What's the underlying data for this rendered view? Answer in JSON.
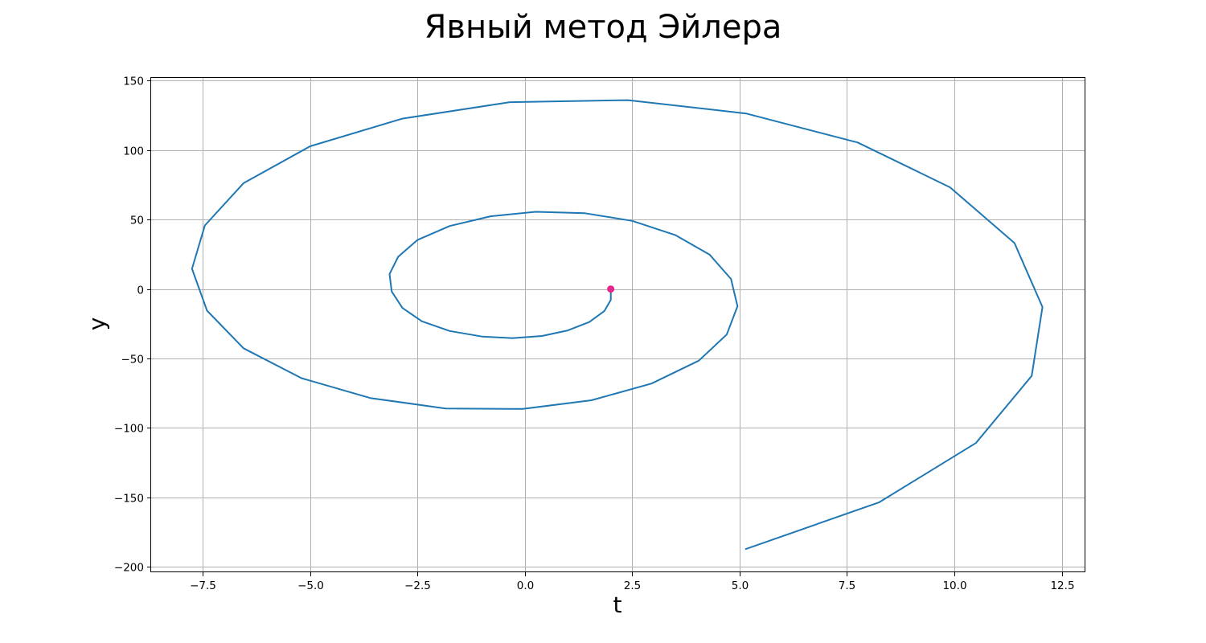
{
  "chart_data": {
    "type": "line",
    "title": "Явный метод Эйлера",
    "xlabel": "t",
    "ylabel": "y",
    "xlim": [
      -8.7,
      13.05
    ],
    "ylim": [
      -204,
      152
    ],
    "xticks": [
      -7.5,
      -5.0,
      -2.5,
      0.0,
      2.5,
      5.0,
      7.5,
      10.0,
      12.5
    ],
    "xtick_labels": [
      "−7.5",
      "−5.0",
      "−2.5",
      "0.0",
      "2.5",
      "5.0",
      "7.5",
      "10.0",
      "12.5"
    ],
    "yticks": [
      -200,
      -150,
      -100,
      -50,
      0,
      50,
      100,
      150
    ],
    "ytick_labels": [
      "−200",
      "−150",
      "−100",
      "−50",
      "0",
      "50",
      "100",
      "150"
    ],
    "grid": true,
    "series": [
      {
        "color": "#1f77b4",
        "points": [
          [
            2.0,
            0.0
          ],
          [
            2.0,
            -7.8
          ],
          [
            1.85,
            -15.9
          ],
          [
            1.5,
            -23.8
          ],
          [
            1.0,
            -29.8
          ],
          [
            0.4,
            -33.8
          ],
          [
            -0.3,
            -35.4
          ],
          [
            -1.0,
            -34.2
          ],
          [
            -1.75,
            -30.2
          ],
          [
            -2.4,
            -23.2
          ],
          [
            -2.85,
            -13.6
          ],
          [
            -3.1,
            -1.8
          ],
          [
            -3.15,
            10.8
          ],
          [
            -2.95,
            23.2
          ],
          [
            -2.5,
            35.3
          ],
          [
            -1.75,
            45.4
          ],
          [
            -0.8,
            52.4
          ],
          [
            0.25,
            55.6
          ],
          [
            1.4,
            54.6
          ],
          [
            2.5,
            49.1
          ],
          [
            3.5,
            38.9
          ],
          [
            4.3,
            24.8
          ],
          [
            4.8,
            7.3
          ],
          [
            4.95,
            -12.4
          ],
          [
            4.7,
            -32.8
          ],
          [
            4.05,
            -51.6
          ],
          [
            2.95,
            -68.1
          ],
          [
            1.55,
            -80.1
          ],
          [
            -0.05,
            -86.4
          ],
          [
            -1.85,
            -86.0
          ],
          [
            -3.6,
            -78.5
          ],
          [
            -5.2,
            -64.2
          ],
          [
            -6.55,
            -42.7
          ],
          [
            -7.4,
            -15.6
          ],
          [
            -7.75,
            14.6
          ],
          [
            -7.45,
            45.8
          ],
          [
            -6.55,
            76.2
          ],
          [
            -5.0,
            102.8
          ],
          [
            -2.85,
            122.7
          ],
          [
            -0.35,
            134.6
          ],
          [
            2.4,
            136.0
          ],
          [
            5.15,
            126.4
          ],
          [
            7.75,
            105.5
          ],
          [
            9.9,
            73.2
          ],
          [
            11.4,
            33.1
          ],
          [
            12.05,
            -13.0
          ],
          [
            11.8,
            -62.6
          ],
          [
            10.5,
            -110.9
          ],
          [
            8.25,
            -153.6
          ],
          [
            5.15,
            -187.2
          ]
        ]
      }
    ],
    "start_marker": {
      "x": 2.0,
      "y": 0.0,
      "color": "#e6258f"
    }
  }
}
